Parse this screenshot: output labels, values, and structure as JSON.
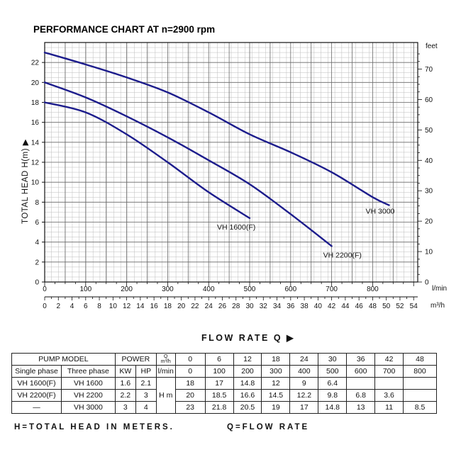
{
  "chart_data": {
    "type": "line",
    "title": "PERFORMANCE CHART AT n=2900 rpm",
    "ylabel": "TOTAL HEAD H(m) ▶",
    "ylabel_right": "feet",
    "xlabel": "FLOW RATE Q ▶",
    "x_unit_lmin": "l/min",
    "x_unit_m3h": "m³/h",
    "ylim": [
      0,
      24
    ],
    "ylim_feet": [
      0,
      78.74
    ],
    "xlim_lmin": [
      0,
      910
    ],
    "y_ticks": [
      "0",
      "2",
      "4",
      "6",
      "8",
      "10",
      "12",
      "14",
      "16",
      "18",
      "20",
      "22"
    ],
    "y_ticks_feet": [
      "0",
      "10",
      "20",
      "30",
      "40",
      "50",
      "60",
      "70"
    ],
    "x_ticks_lmin": [
      "0",
      "100",
      "200",
      "300",
      "400",
      "500",
      "600",
      "700",
      "800"
    ],
    "x_ticks_m3h": [
      "0",
      "2",
      "4",
      "6",
      "8",
      "10",
      "12",
      "14",
      "16",
      "18",
      "20",
      "22",
      "24",
      "26",
      "28",
      "30",
      "32",
      "34",
      "36",
      "38",
      "40",
      "42",
      "44",
      "46",
      "48",
      "50",
      "52",
      "54"
    ],
    "grid": true,
    "series": [
      {
        "name": "VH 1600(F)",
        "color": "#1c1c8c",
        "points": [
          [
            0,
            18
          ],
          [
            100,
            17
          ],
          [
            200,
            14.8
          ],
          [
            300,
            12
          ],
          [
            400,
            9
          ],
          [
            500,
            6.4
          ]
        ]
      },
      {
        "name": "VH 2200(F)",
        "color": "#1c1c8c",
        "points": [
          [
            0,
            20
          ],
          [
            100,
            18.5
          ],
          [
            200,
            16.6
          ],
          [
            300,
            14.5
          ],
          [
            400,
            12.2
          ],
          [
            500,
            9.8
          ],
          [
            600,
            6.8
          ],
          [
            700,
            3.6
          ]
        ]
      },
      {
        "name": "VH 3000",
        "color": "#1c1c8c",
        "points": [
          [
            0,
            23
          ],
          [
            100,
            21.8
          ],
          [
            200,
            20.5
          ],
          [
            300,
            19
          ],
          [
            400,
            17
          ],
          [
            500,
            14.8
          ],
          [
            600,
            13
          ],
          [
            700,
            11
          ],
          [
            800,
            8.5
          ],
          [
            840,
            7.7
          ]
        ]
      }
    ]
  },
  "table": {
    "h_pump_model": "PUMP MODEL",
    "h_power": "POWER",
    "h_q_top": "Q",
    "h_q_bottom": "m³/h",
    "h_single": "Single phase",
    "h_three": "Three phase",
    "h_kw": "KW",
    "h_hp": "HP",
    "h_lmin": "l/min",
    "h_hm": "H m",
    "q_m3h": [
      "0",
      "6",
      "12",
      "18",
      "24",
      "30",
      "36",
      "42",
      "48"
    ],
    "q_lmin": [
      "0",
      "100",
      "200",
      "300",
      "400",
      "500",
      "600",
      "700",
      "800"
    ],
    "rows": [
      {
        "single": "VH 1600(F)",
        "three": "VH 1600",
        "kw": "1.6",
        "hp": "2.1",
        "h": [
          "18",
          "17",
          "14.8",
          "12",
          "9",
          "6.4",
          "",
          "",
          ""
        ]
      },
      {
        "single": "VH 2200(F)",
        "three": "VH 2200",
        "kw": "2.2",
        "hp": "3",
        "h": [
          "20",
          "18.5",
          "16.6",
          "14.5",
          "12.2",
          "9.8",
          "6.8",
          "3.6",
          ""
        ]
      },
      {
        "single": "—",
        "three": "VH 3000",
        "kw": "3",
        "hp": "4",
        "h": [
          "23",
          "21.8",
          "20.5",
          "19",
          "17",
          "14.8",
          "13",
          "11",
          "8.5"
        ]
      }
    ]
  },
  "footer": {
    "left": "H=TOTAL HEAD IN METERS.",
    "right": "Q=FLOW RATE"
  }
}
